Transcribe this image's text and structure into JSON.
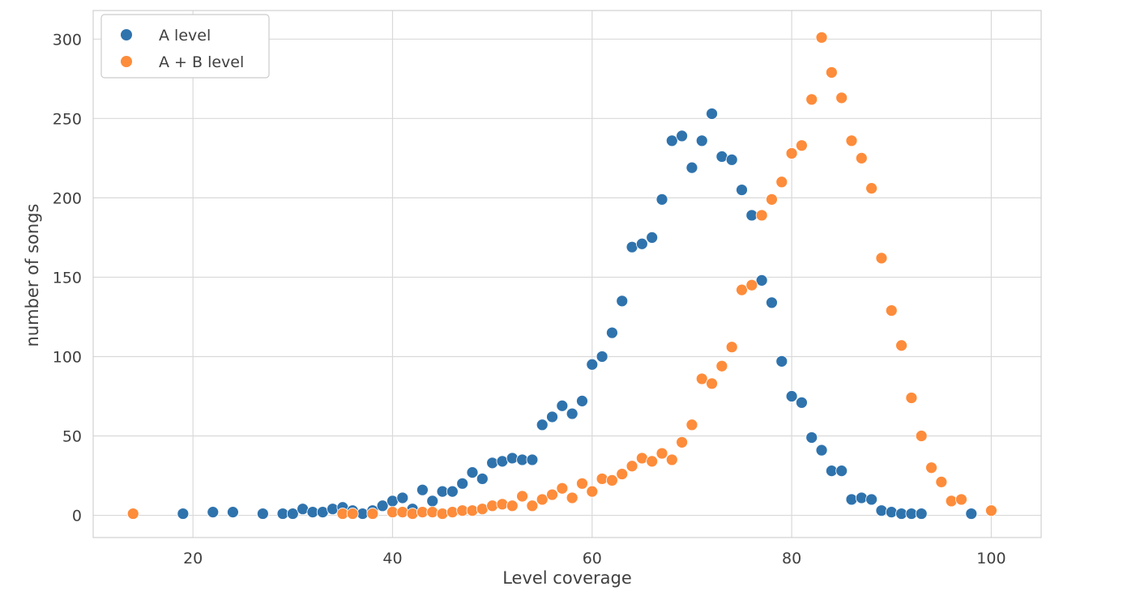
{
  "chart_data": {
    "type": "scatter",
    "title": "",
    "xlabel": "Level coverage",
    "ylabel": "number of songs",
    "xlim": [
      10,
      105
    ],
    "ylim": [
      -14,
      318
    ],
    "xticks": [
      20,
      40,
      60,
      80,
      100
    ],
    "yticks": [
      0,
      50,
      100,
      150,
      200,
      250,
      300
    ],
    "grid": true,
    "legend_position": "top-left",
    "series": [
      {
        "name": "A level",
        "color": "#2f73ad",
        "points": [
          [
            19,
            1
          ],
          [
            22,
            2
          ],
          [
            24,
            2
          ],
          [
            27,
            1
          ],
          [
            29,
            1
          ],
          [
            30,
            1
          ],
          [
            31,
            4
          ],
          [
            32,
            2
          ],
          [
            33,
            2
          ],
          [
            34,
            4
          ],
          [
            35,
            5
          ],
          [
            36,
            3
          ],
          [
            37,
            1
          ],
          [
            38,
            3
          ],
          [
            39,
            6
          ],
          [
            40,
            9
          ],
          [
            41,
            11
          ],
          [
            42,
            4
          ],
          [
            43,
            16
          ],
          [
            44,
            9
          ],
          [
            45,
            15
          ],
          [
            46,
            15
          ],
          [
            47,
            20
          ],
          [
            48,
            27
          ],
          [
            49,
            23
          ],
          [
            50,
            33
          ],
          [
            51,
            34
          ],
          [
            52,
            36
          ],
          [
            53,
            35
          ],
          [
            54,
            35
          ],
          [
            55,
            57
          ],
          [
            56,
            62
          ],
          [
            57,
            69
          ],
          [
            58,
            64
          ],
          [
            59,
            72
          ],
          [
            60,
            95
          ],
          [
            61,
            100
          ],
          [
            62,
            115
          ],
          [
            63,
            135
          ],
          [
            64,
            169
          ],
          [
            65,
            171
          ],
          [
            66,
            175
          ],
          [
            67,
            199
          ],
          [
            68,
            236
          ],
          [
            69,
            239
          ],
          [
            70,
            219
          ],
          [
            71,
            236
          ],
          [
            72,
            253
          ],
          [
            73,
            226
          ],
          [
            74,
            224
          ],
          [
            75,
            205
          ],
          [
            76,
            189
          ],
          [
            77,
            148
          ],
          [
            78,
            134
          ],
          [
            79,
            97
          ],
          [
            80,
            75
          ],
          [
            81,
            71
          ],
          [
            82,
            49
          ],
          [
            83,
            41
          ],
          [
            84,
            28
          ],
          [
            85,
            28
          ],
          [
            86,
            10
          ],
          [
            87,
            11
          ],
          [
            88,
            10
          ],
          [
            89,
            3
          ],
          [
            90,
            2
          ],
          [
            91,
            1
          ],
          [
            92,
            1
          ],
          [
            93,
            1
          ],
          [
            98,
            1
          ]
        ]
      },
      {
        "name": "A + B level",
        "color": "#fd8c3b",
        "points": [
          [
            14,
            1
          ],
          [
            35,
            1
          ],
          [
            36,
            1
          ],
          [
            38,
            1
          ],
          [
            40,
            2
          ],
          [
            41,
            2
          ],
          [
            42,
            1
          ],
          [
            43,
            2
          ],
          [
            44,
            2
          ],
          [
            45,
            1
          ],
          [
            46,
            2
          ],
          [
            47,
            3
          ],
          [
            48,
            3
          ],
          [
            49,
            4
          ],
          [
            50,
            6
          ],
          [
            51,
            7
          ],
          [
            52,
            6
          ],
          [
            53,
            12
          ],
          [
            54,
            6
          ],
          [
            55,
            10
          ],
          [
            56,
            13
          ],
          [
            57,
            17
          ],
          [
            58,
            11
          ],
          [
            59,
            20
          ],
          [
            60,
            15
          ],
          [
            61,
            23
          ],
          [
            62,
            22
          ],
          [
            63,
            26
          ],
          [
            64,
            31
          ],
          [
            65,
            36
          ],
          [
            66,
            34
          ],
          [
            67,
            39
          ],
          [
            68,
            35
          ],
          [
            69,
            46
          ],
          [
            70,
            57
          ],
          [
            71,
            86
          ],
          [
            72,
            83
          ],
          [
            73,
            94
          ],
          [
            74,
            106
          ],
          [
            75,
            142
          ],
          [
            76,
            145
          ],
          [
            77,
            189
          ],
          [
            78,
            199
          ],
          [
            79,
            210
          ],
          [
            80,
            228
          ],
          [
            81,
            233
          ],
          [
            82,
            262
          ],
          [
            83,
            301
          ],
          [
            84,
            279
          ],
          [
            85,
            263
          ],
          [
            86,
            236
          ],
          [
            87,
            225
          ],
          [
            88,
            206
          ],
          [
            89,
            162
          ],
          [
            90,
            129
          ],
          [
            91,
            107
          ],
          [
            92,
            74
          ],
          [
            93,
            50
          ],
          [
            94,
            30
          ],
          [
            95,
            21
          ],
          [
            96,
            9
          ],
          [
            97,
            10
          ],
          [
            100,
            3
          ]
        ]
      }
    ]
  }
}
